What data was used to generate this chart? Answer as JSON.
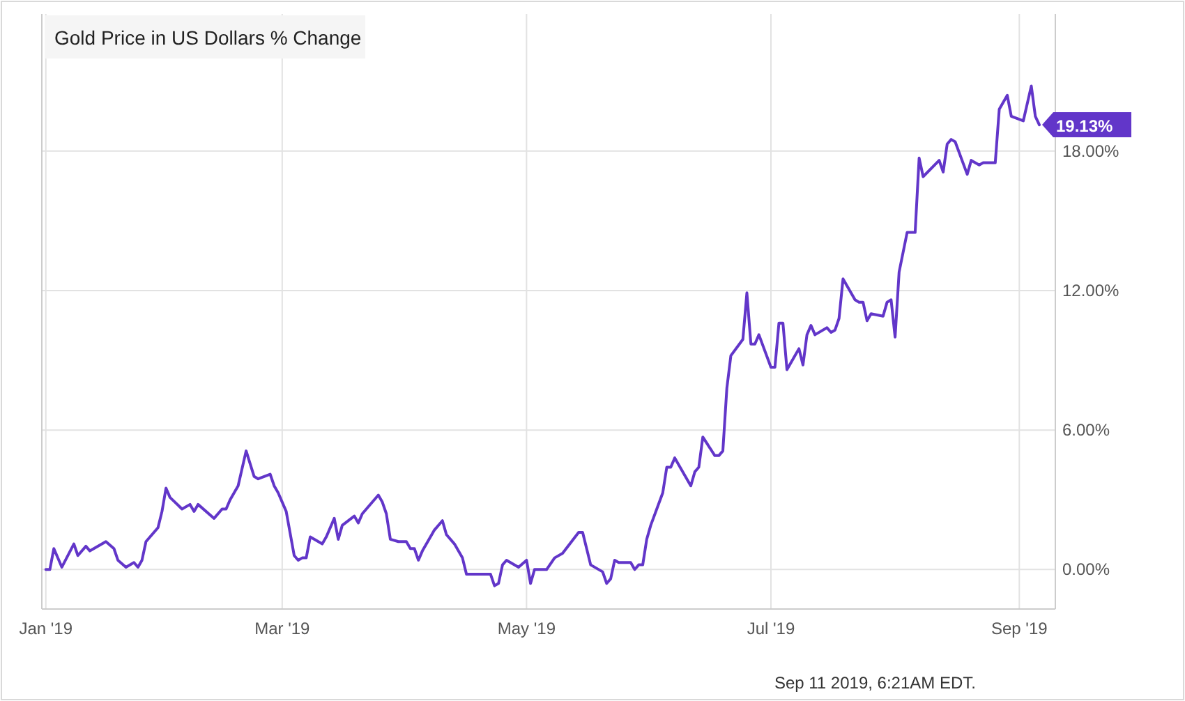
{
  "chart_data": {
    "type": "line",
    "title": "Gold Price in US Dollars % Change",
    "x": [
      "2019-01-01",
      "2019-01-02",
      "2019-01-03",
      "2019-01-05",
      "2019-01-08",
      "2019-01-09",
      "2019-01-11",
      "2019-01-12",
      "2019-01-16",
      "2019-01-18",
      "2019-01-19",
      "2019-01-21",
      "2019-01-23",
      "2019-01-24",
      "2019-01-25",
      "2019-01-26",
      "2019-01-29",
      "2019-01-30",
      "2019-01-31",
      "2019-02-01",
      "2019-02-04",
      "2019-02-06",
      "2019-02-07",
      "2019-02-08",
      "2019-02-12",
      "2019-02-14",
      "2019-02-15",
      "2019-02-16",
      "2019-02-18",
      "2019-02-20",
      "2019-02-22",
      "2019-02-23",
      "2019-02-26",
      "2019-02-27",
      "2019-02-28",
      "2019-03-02",
      "2019-03-04",
      "2019-03-05",
      "2019-03-06",
      "2019-03-07",
      "2019-03-08",
      "2019-03-11",
      "2019-03-12",
      "2019-03-14",
      "2019-03-15",
      "2019-03-16",
      "2019-03-19",
      "2019-03-20",
      "2019-03-21",
      "2019-03-25",
      "2019-03-26",
      "2019-03-27",
      "2019-03-28",
      "2019-03-30",
      "2019-04-01",
      "2019-04-02",
      "2019-04-03",
      "2019-04-04",
      "2019-04-05",
      "2019-04-08",
      "2019-04-10",
      "2019-04-11",
      "2019-04-13",
      "2019-04-15",
      "2019-04-16",
      "2019-04-17",
      "2019-04-22",
      "2019-04-23",
      "2019-04-24",
      "2019-04-25",
      "2019-04-26",
      "2019-04-29",
      "2019-05-01",
      "2019-05-02",
      "2019-05-03",
      "2019-05-06",
      "2019-05-08",
      "2019-05-10",
      "2019-05-14",
      "2019-05-15",
      "2019-05-16",
      "2019-05-17",
      "2019-05-20",
      "2019-05-21",
      "2019-05-22",
      "2019-05-23",
      "2019-05-24",
      "2019-05-27",
      "2019-05-28",
      "2019-05-29",
      "2019-05-30",
      "2019-05-31",
      "2019-06-01",
      "2019-06-04",
      "2019-06-05",
      "2019-06-06",
      "2019-06-07",
      "2019-06-11",
      "2019-06-12",
      "2019-06-13",
      "2019-06-14",
      "2019-06-17",
      "2019-06-18",
      "2019-06-19",
      "2019-06-20",
      "2019-06-21",
      "2019-06-24",
      "2019-06-25",
      "2019-06-26",
      "2019-06-27",
      "2019-06-28",
      "2019-07-01",
      "2019-07-02",
      "2019-07-03",
      "2019-07-04",
      "2019-07-05",
      "2019-07-08",
      "2019-07-09",
      "2019-07-10",
      "2019-07-11",
      "2019-07-12",
      "2019-07-15",
      "2019-07-16",
      "2019-07-17",
      "2019-07-18",
      "2019-07-19",
      "2019-07-22",
      "2019-07-23",
      "2019-07-24",
      "2019-07-25",
      "2019-07-26",
      "2019-07-29",
      "2019-07-30",
      "2019-07-31",
      "2019-08-01",
      "2019-08-02",
      "2019-08-04",
      "2019-08-06",
      "2019-08-07",
      "2019-08-08",
      "2019-08-12",
      "2019-08-13",
      "2019-08-14",
      "2019-08-15",
      "2019-08-16",
      "2019-08-19",
      "2019-08-20",
      "2019-08-22",
      "2019-08-23",
      "2019-08-26",
      "2019-08-27",
      "2019-08-29",
      "2019-08-30",
      "2019-09-02",
      "2019-09-04",
      "2019-09-05",
      "2019-09-06"
    ],
    "series": [
      {
        "color": "#6236c9",
        "values": [
          0.0,
          0.0,
          0.9,
          0.1,
          1.1,
          0.6,
          1.0,
          0.8,
          1.2,
          0.9,
          0.4,
          0.1,
          0.3,
          0.1,
          0.4,
          1.2,
          1.8,
          2.5,
          3.5,
          3.1,
          2.6,
          2.8,
          2.5,
          2.8,
          2.2,
          2.6,
          2.6,
          3.0,
          3.6,
          5.1,
          4.0,
          3.9,
          4.1,
          3.6,
          3.3,
          2.5,
          0.6,
          0.4,
          0.5,
          0.5,
          1.4,
          1.1,
          1.4,
          2.2,
          1.3,
          1.9,
          2.3,
          2.0,
          2.4,
          3.2,
          2.9,
          2.4,
          1.3,
          1.2,
          1.2,
          0.9,
          0.9,
          0.4,
          0.8,
          1.7,
          2.1,
          1.5,
          1.1,
          0.5,
          -0.2,
          -0.2,
          -0.2,
          -0.7,
          -0.6,
          0.2,
          0.4,
          0.1,
          0.4,
          -0.6,
          0.0,
          0.0,
          0.5,
          0.7,
          1.6,
          1.6,
          0.9,
          0.2,
          -0.1,
          -0.6,
          -0.4,
          0.4,
          0.3,
          0.3,
          0.0,
          0.2,
          0.2,
          1.3,
          1.9,
          3.3,
          4.4,
          4.4,
          4.8,
          3.6,
          4.2,
          4.4,
          5.7,
          4.9,
          4.9,
          5.1,
          7.8,
          9.2,
          9.9,
          11.9,
          9.7,
          9.7,
          10.1,
          8.7,
          8.7,
          10.6,
          10.6,
          8.6,
          9.5,
          8.8,
          10.1,
          10.5,
          10.1,
          10.4,
          10.2,
          10.3,
          10.8,
          12.5,
          11.6,
          11.5,
          11.5,
          10.7,
          11.0,
          10.9,
          11.5,
          11.6,
          10.0,
          12.8,
          14.5,
          14.5,
          17.7,
          16.9,
          17.6,
          17.1,
          18.3,
          18.5,
          18.4,
          17.0,
          17.6,
          17.4,
          17.5,
          17.5,
          19.8,
          20.4,
          19.5,
          19.3,
          20.8,
          19.5,
          19.13
        ]
      }
    ],
    "xlim": [
      "2018-12-31",
      "2019-09-10"
    ],
    "xticks": [
      {
        "value": "2019-01-01",
        "label": "Jan '19"
      },
      {
        "value": "2019-03-01",
        "label": "Mar '19"
      },
      {
        "value": "2019-05-01",
        "label": "May '19"
      },
      {
        "value": "2019-07-01",
        "label": "Jul '19"
      },
      {
        "value": "2019-09-01",
        "label": "Sep '19"
      }
    ],
    "ylim": [
      -1.7,
      23.9
    ],
    "yticks": [
      {
        "value": 0,
        "label": "0.00%"
      },
      {
        "value": 6,
        "label": "6.00%"
      },
      {
        "value": 12,
        "label": "12.00%"
      },
      {
        "value": 18,
        "label": "18.00%"
      }
    ],
    "grid": true,
    "marker": "none",
    "line_style": "solid",
    "annotations": [
      {
        "text": "19.13%",
        "x": "2019-09-06",
        "y": 19.13
      },
      "Sep 11 2019, 6:21AM EDT."
    ]
  }
}
